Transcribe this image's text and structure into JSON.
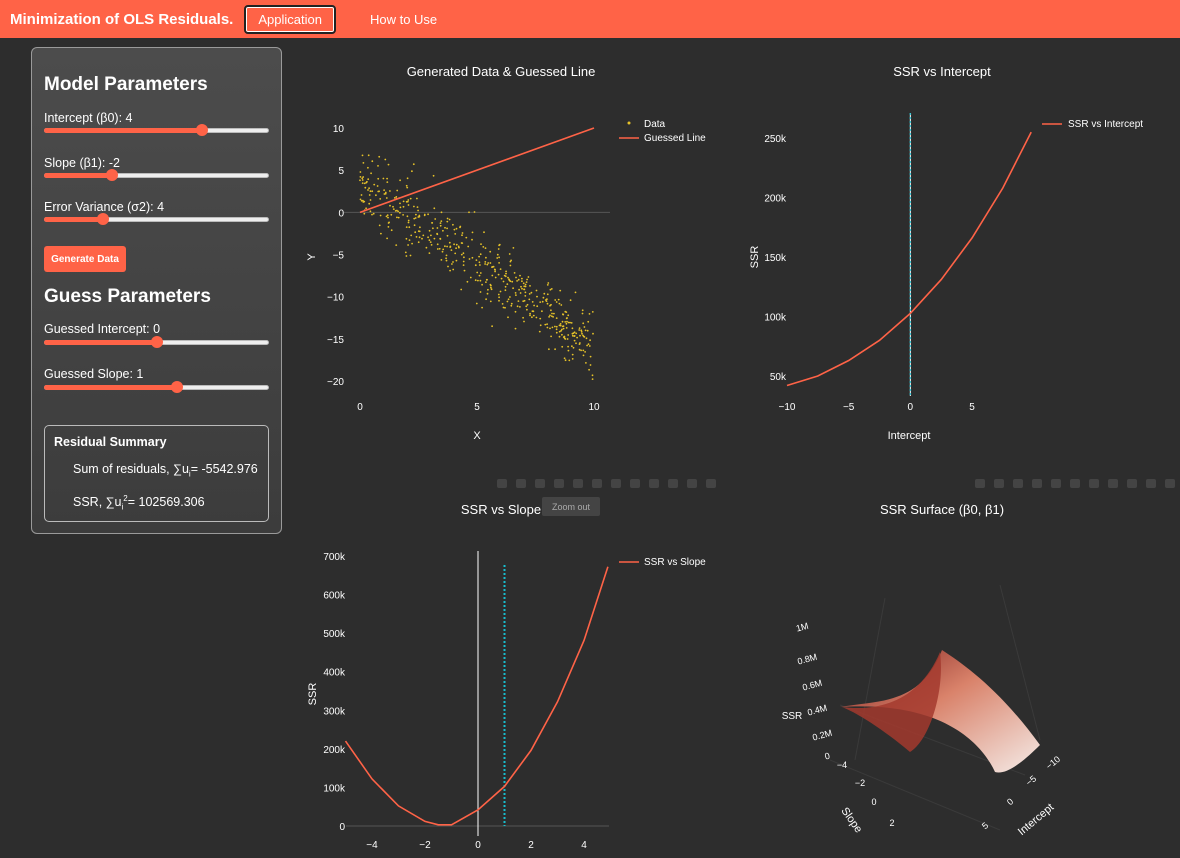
{
  "header": {
    "brand": "Minimization of OLS Residuals.",
    "tab_active": "Application",
    "tab_other": "How to Use"
  },
  "colors": {
    "accent": "#ff6347",
    "data_point": "#e6c229",
    "vline_guess": "#17becf"
  },
  "sidebar": {
    "model_title": "Model Parameters",
    "intercept_label": "Intercept (β0): 4",
    "intercept_level": 0.7,
    "slope_label": "Slope (β1): -2",
    "slope_level": 0.3,
    "variance_label": "Error Variance (σ2): 4",
    "variance_level": 0.26,
    "generate_button": "Generate Data",
    "guess_title": "Guess Parameters",
    "g_intercept_label": "Guessed Intercept: 0",
    "g_intercept_level": 0.5,
    "g_slope_label": "Guessed Slope: 1",
    "g_slope_level": 0.59
  },
  "summary": {
    "title": "Residual Summary",
    "sum_prefix": "Sum of residuals, ∑u",
    "sum_sub": "i",
    "sum_value": "= -5542.976",
    "ssr_prefix": "SSR, ∑u",
    "ssr_sub": "i",
    "ssr_sup": "2",
    "ssr_value": "= 102569.306"
  },
  "tooltip": "Zoom out",
  "chart_data": [
    {
      "type": "scatter",
      "title": "Generated Data & Guessed Line",
      "xlabel": "X",
      "ylabel": "Y",
      "xlim": [
        0,
        10
      ],
      "ylim": [
        -21,
        11
      ],
      "xticks": [
        "0",
        "5",
        "10"
      ],
      "yticks": [
        "10",
        "5",
        "0",
        "−5",
        "−10",
        "−15",
        "−20"
      ],
      "series": [
        {
          "name": "Data",
          "model": {
            "intercept": 4,
            "slope": -2,
            "error_variance": 4
          },
          "n_points": 500
        },
        {
          "name": "Guessed Line",
          "x": [
            0,
            10
          ],
          "y": [
            0,
            10
          ]
        }
      ],
      "legend": "top-right"
    },
    {
      "type": "line",
      "title": "SSR vs Intercept",
      "xlabel": "Intercept",
      "ylabel": "SSR",
      "xlim": [
        -10,
        10
      ],
      "ylim": [
        35000,
        265000
      ],
      "xticks": [
        "−10",
        "−5",
        "0",
        "5"
      ],
      "yticks": [
        "250k",
        "200k",
        "150k",
        "100k",
        "50k"
      ],
      "series": [
        {
          "name": "SSR vs Intercept",
          "x": [
            -10,
            -7.5,
            -5,
            -2.5,
            0,
            2.5,
            5,
            7.5,
            9.8
          ],
          "y": [
            42000,
            50000,
            63000,
            80000,
            102569,
            131000,
            166000,
            208000,
            255000
          ]
        }
      ],
      "vline_x": 0,
      "legend": "top-right"
    },
    {
      "type": "line",
      "title": "SSR vs Slope",
      "xlabel": "",
      "ylabel": "SSR",
      "xlim": [
        -5,
        5
      ],
      "ylim": [
        -10000,
        720000
      ],
      "xticks": [
        "−4",
        "−2",
        "0",
        "2",
        "4"
      ],
      "yticks": [
        "700k",
        "600k",
        "500k",
        "400k",
        "300k",
        "200k",
        "100k",
        "0"
      ],
      "series": [
        {
          "name": "SSR vs Slope",
          "x": [
            -5,
            -4,
            -3,
            -2,
            -1.5,
            -1,
            0,
            1,
            2,
            3,
            4,
            4.9
          ],
          "y": [
            220000,
            122000,
            52000,
            12000,
            3000,
            3000,
            42000,
            102569,
            196000,
            322000,
            481000,
            672000
          ]
        }
      ],
      "vline_x": 0,
      "vline_guess_x": 1,
      "legend": "top-right"
    },
    {
      "type": "surface",
      "title": "SSR Surface (β0, β1)",
      "xlabel": "Intercept",
      "ylabel": "Slope",
      "zlabel": "SSR",
      "xticks": [
        "−10",
        "−5",
        "0",
        "5"
      ],
      "yticks": [
        "−4",
        "−2",
        "0",
        "2"
      ],
      "zticks": [
        "1M",
        "0.8M",
        "0.6M",
        "0.4M",
        "0.2M",
        "0"
      ]
    }
  ]
}
